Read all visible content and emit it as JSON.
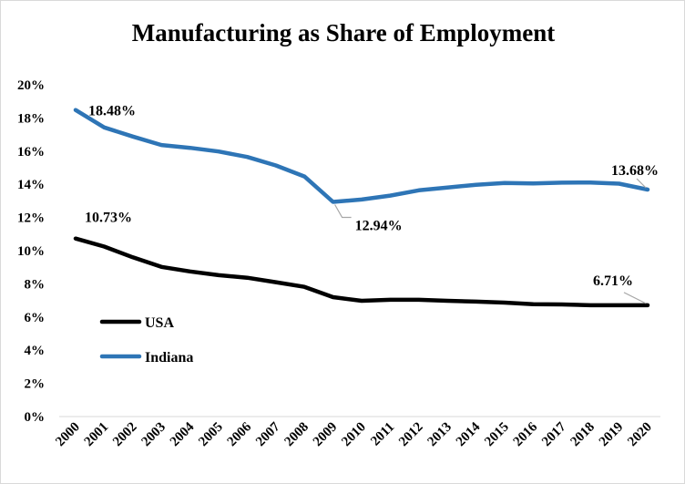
{
  "chart_data": {
    "type": "line",
    "title": "Manufacturing as Share of Employment",
    "xlabel": "",
    "ylabel": "",
    "ylim": [
      0,
      20
    ],
    "y_tick_labels": [
      "0%",
      "2%",
      "4%",
      "6%",
      "8%",
      "10%",
      "12%",
      "14%",
      "16%",
      "18%",
      "20%"
    ],
    "grid": false,
    "legend_position": "left, inside plot",
    "categories": [
      "2000",
      "2001",
      "2002",
      "2003",
      "2004",
      "2005",
      "2006",
      "2007",
      "2008",
      "2009",
      "2010",
      "2011",
      "2012",
      "2013",
      "2014",
      "2015",
      "2016",
      "2017",
      "2018",
      "2019",
      "2020"
    ],
    "series": [
      {
        "name": "USA",
        "color": "#000000",
        "values": [
          10.73,
          10.25,
          9.6,
          9.02,
          8.75,
          8.52,
          8.37,
          8.1,
          7.82,
          7.2,
          6.98,
          7.04,
          7.04,
          6.98,
          6.93,
          6.87,
          6.77,
          6.76,
          6.71,
          6.71,
          6.71
        ]
      },
      {
        "name": "Indiana",
        "color": "#2e75b6",
        "values": [
          18.48,
          17.43,
          16.88,
          16.37,
          16.2,
          15.98,
          15.65,
          15.14,
          14.47,
          12.94,
          13.08,
          13.32,
          13.64,
          13.8,
          13.97,
          14.08,
          14.05,
          14.1,
          14.11,
          14.04,
          13.68
        ]
      }
    ],
    "annotations": [
      {
        "series": "Indiana",
        "x": "2000",
        "text": "18.48%"
      },
      {
        "series": "Indiana",
        "x": "2009",
        "text": "12.94%"
      },
      {
        "series": "Indiana",
        "x": "2020",
        "text": "13.68%"
      },
      {
        "series": "USA",
        "x": "2000",
        "text": "10.73%"
      },
      {
        "series": "USA",
        "x": "2020",
        "text": "6.71%"
      }
    ]
  }
}
